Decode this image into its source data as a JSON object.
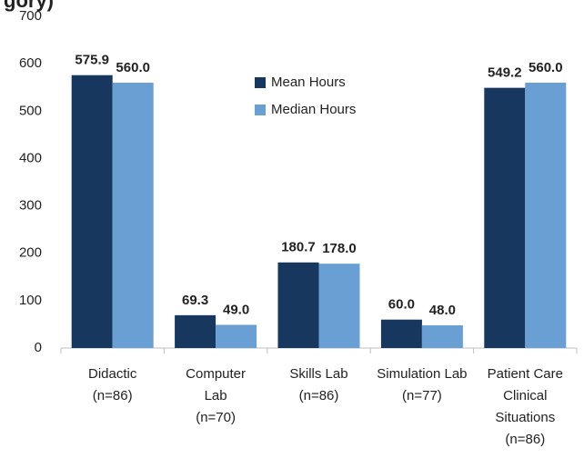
{
  "chart_data": {
    "type": "bar",
    "title": "gory)",
    "categories": [
      [
        "Didactic",
        "(n=86)"
      ],
      [
        "Computer",
        "Lab",
        "(n=70)"
      ],
      [
        "Skills Lab",
        "(n=86)"
      ],
      [
        "Simulation Lab",
        "(n=77)"
      ],
      [
        "Patient Care",
        "Clinical",
        "Situations",
        "(n=86)"
      ]
    ],
    "series": [
      {
        "name": "Mean Hours",
        "color": "#17375e",
        "values": [
          575.9,
          69.3,
          180.7,
          60.0,
          549.2
        ],
        "value_labels": [
          "575.9",
          "69.3",
          "180.7",
          "60.0",
          "549.2"
        ]
      },
      {
        "name": "Median Hours",
        "color": "#6a9fd4",
        "values": [
          560.0,
          49.0,
          178.0,
          48.0,
          560.0
        ],
        "value_labels": [
          "560.0",
          "49.0",
          "178.0",
          "48.0",
          "560.0"
        ]
      }
    ],
    "ylim": [
      0,
      700
    ],
    "yticks": [
      0,
      100,
      200,
      300,
      400,
      500,
      600,
      700
    ],
    "grid": false
  }
}
